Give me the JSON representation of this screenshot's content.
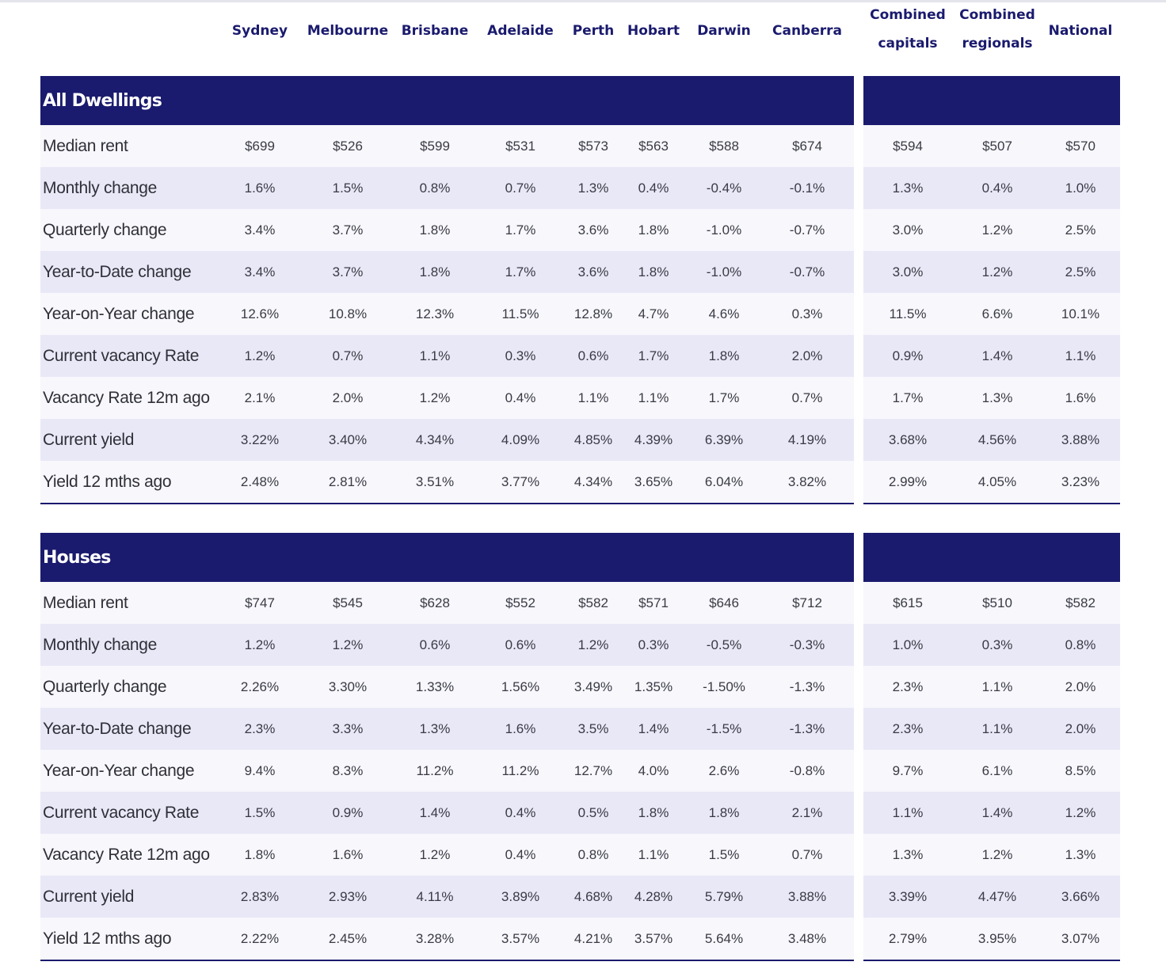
{
  "columns": [
    {
      "label": "Sydney"
    },
    {
      "label": "Melbourne"
    },
    {
      "label": "Brisbane"
    },
    {
      "label": "Adelaide"
    },
    {
      "label": "Perth"
    },
    {
      "label": "Hobart"
    },
    {
      "label": "Darwin"
    },
    {
      "label": "Canberra"
    },
    {
      "label": "Combined",
      "label2": "capitals"
    },
    {
      "label": "Combined",
      "label2": "regionals"
    },
    {
      "label": "National"
    }
  ],
  "sections": [
    {
      "title": "All Dwellings",
      "rows": [
        {
          "label": "Median rent",
          "values": [
            "$699",
            "$526",
            "$599",
            "$531",
            "$573",
            "$563",
            "$588",
            "$674",
            "$594",
            "$507",
            "$570"
          ]
        },
        {
          "label": "Monthly change",
          "values": [
            "1.6%",
            "1.5%",
            "0.8%",
            "0.7%",
            "1.3%",
            "0.4%",
            "-0.4%",
            "-0.1%",
            "1.3%",
            "0.4%",
            "1.0%"
          ]
        },
        {
          "label": "Quarterly change",
          "values": [
            "3.4%",
            "3.7%",
            "1.8%",
            "1.7%",
            "3.6%",
            "1.8%",
            "-1.0%",
            "-0.7%",
            "3.0%",
            "1.2%",
            "2.5%"
          ]
        },
        {
          "label": "Year-to-Date change",
          "values": [
            "3.4%",
            "3.7%",
            "1.8%",
            "1.7%",
            "3.6%",
            "1.8%",
            "-1.0%",
            "-0.7%",
            "3.0%",
            "1.2%",
            "2.5%"
          ]
        },
        {
          "label": "Year-on-Year change",
          "values": [
            "12.6%",
            "10.8%",
            "12.3%",
            "11.5%",
            "12.8%",
            "4.7%",
            "4.6%",
            "0.3%",
            "11.5%",
            "6.6%",
            "10.1%"
          ]
        },
        {
          "label": "Current vacancy Rate",
          "values": [
            "1.2%",
            "0.7%",
            "1.1%",
            "0.3%",
            "0.6%",
            "1.7%",
            "1.8%",
            "2.0%",
            "0.9%",
            "1.4%",
            "1.1%"
          ]
        },
        {
          "label": "Vacancy Rate 12m ago",
          "values": [
            "2.1%",
            "2.0%",
            "1.2%",
            "0.4%",
            "1.1%",
            "1.1%",
            "1.7%",
            "0.7%",
            "1.7%",
            "1.3%",
            "1.6%"
          ]
        },
        {
          "label": "Current yield",
          "values": [
            "3.22%",
            "3.40%",
            "4.34%",
            "4.09%",
            "4.85%",
            "4.39%",
            "6.39%",
            "4.19%",
            "3.68%",
            "4.56%",
            "3.88%"
          ]
        },
        {
          "label": "Yield 12 mths ago",
          "values": [
            "2.48%",
            "2.81%",
            "3.51%",
            "3.77%",
            "4.34%",
            "3.65%",
            "6.04%",
            "3.82%",
            "2.99%",
            "4.05%",
            "3.23%"
          ]
        }
      ]
    },
    {
      "title": "Houses",
      "rows": [
        {
          "label": "Median rent",
          "values": [
            "$747",
            "$545",
            "$628",
            "$552",
            "$582",
            "$571",
            "$646",
            "$712",
            "$615",
            "$510",
            "$582"
          ]
        },
        {
          "label": "Monthly change",
          "values": [
            "1.2%",
            "1.2%",
            "0.6%",
            "0.6%",
            "1.2%",
            "0.3%",
            "-0.5%",
            "-0.3%",
            "1.0%",
            "0.3%",
            "0.8%"
          ]
        },
        {
          "label": "Quarterly change",
          "values": [
            "2.26%",
            "3.30%",
            "1.33%",
            "1.56%",
            "3.49%",
            "1.35%",
            "-1.50%",
            "-1.3%",
            "2.3%",
            "1.1%",
            "2.0%"
          ]
        },
        {
          "label": "Year-to-Date change",
          "values": [
            "2.3%",
            "3.3%",
            "1.3%",
            "1.6%",
            "3.5%",
            "1.4%",
            "-1.5%",
            "-1.3%",
            "2.3%",
            "1.1%",
            "2.0%"
          ]
        },
        {
          "label": "Year-on-Year change",
          "values": [
            "9.4%",
            "8.3%",
            "11.2%",
            "11.2%",
            "12.7%",
            "4.0%",
            "2.6%",
            "-0.8%",
            "9.7%",
            "6.1%",
            "8.5%"
          ]
        },
        {
          "label": "Current vacancy Rate",
          "values": [
            "1.5%",
            "0.9%",
            "1.4%",
            "0.4%",
            "0.5%",
            "1.8%",
            "1.8%",
            "2.1%",
            "1.1%",
            "1.4%",
            "1.2%"
          ]
        },
        {
          "label": "Vacancy Rate 12m ago",
          "values": [
            "1.8%",
            "1.6%",
            "1.2%",
            "0.4%",
            "0.8%",
            "1.1%",
            "1.5%",
            "0.7%",
            "1.3%",
            "1.2%",
            "1.3%"
          ]
        },
        {
          "label": "Current yield",
          "values": [
            "2.83%",
            "2.93%",
            "4.11%",
            "3.89%",
            "4.68%",
            "4.28%",
            "5.79%",
            "3.88%",
            "3.39%",
            "4.47%",
            "3.66%"
          ]
        },
        {
          "label": "Yield 12 mths ago",
          "values": [
            "2.22%",
            "2.45%",
            "3.28%",
            "3.57%",
            "4.21%",
            "3.57%",
            "5.64%",
            "3.48%",
            "2.79%",
            "3.95%",
            "3.07%"
          ]
        }
      ]
    }
  ]
}
